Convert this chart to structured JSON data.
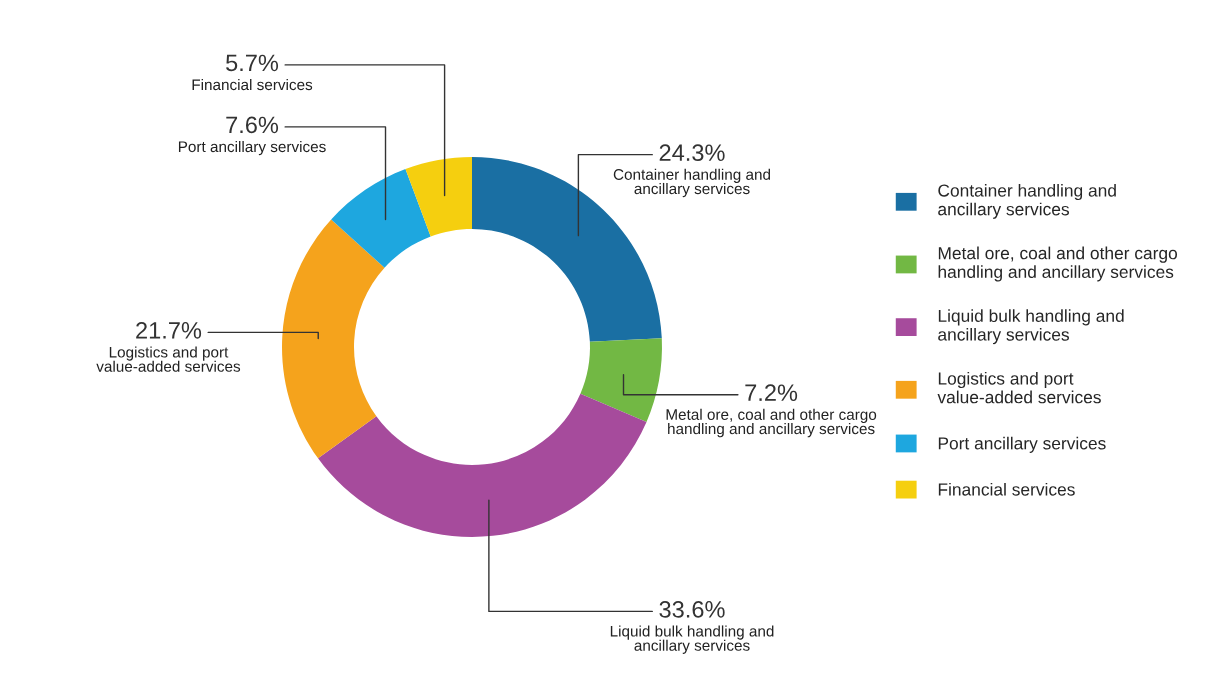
{
  "chart_data": {
    "type": "donut",
    "categories": [
      "Container handling and\nancillary services",
      "Metal ore, coal and other cargo\nhandling and ancillary services",
      "Liquid bulk handling and\nancillary services",
      "Logistics and port\nvalue-added services",
      "Port ancillary services",
      "Financial services"
    ],
    "values": [
      24.3,
      7.2,
      33.6,
      21.7,
      7.6,
      5.7
    ],
    "colors": [
      "#1a6fa3",
      "#72b844",
      "#a64b9c",
      "#f5a31c",
      "#1ea7df",
      "#f5cf0f"
    ],
    "value_labels": [
      "24.3%",
      "7.2%",
      "33.6%",
      "21.7%",
      "7.6%",
      "5.7%"
    ],
    "legend": "right"
  }
}
